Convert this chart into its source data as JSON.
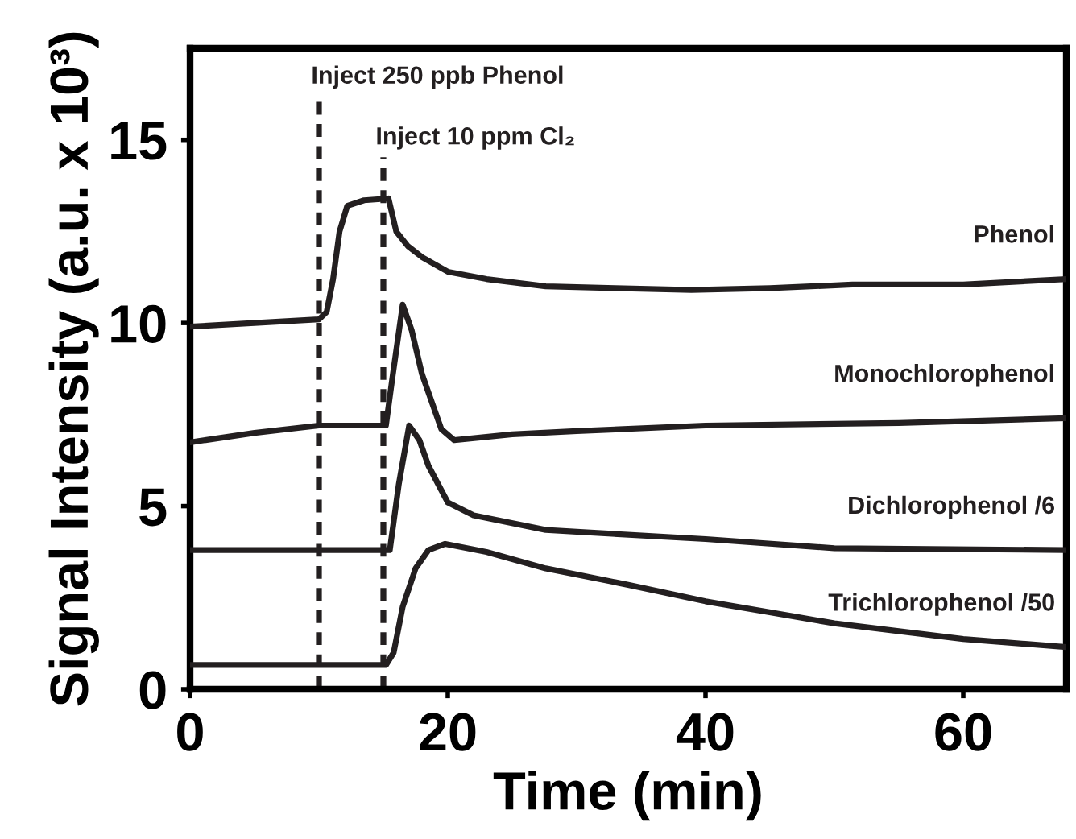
{
  "chart_data": {
    "type": "line",
    "xlabel": "Time (min)",
    "ylabel": "Signal Intensity (a.u. x 10³)",
    "xlim": [
      0,
      68
    ],
    "xticks": [
      0,
      20,
      40,
      60
    ],
    "ylim": [
      0,
      17.5
    ],
    "yticks": [
      0,
      5,
      10,
      15
    ],
    "grid": false,
    "legend": false,
    "marker": "none",
    "line_style": "solid",
    "series": [
      {
        "name": "Phenol",
        "color": "#231f20",
        "x": [
          0,
          5,
          10,
          10.6,
          11.1,
          11.6,
          12.2,
          13.5,
          15.4,
          16,
          16.9,
          18,
          20,
          23,
          27.6,
          33,
          38.9,
          45,
          51.4,
          60,
          68
        ],
        "values": [
          9.9,
          10.0,
          10.1,
          10.3,
          11.2,
          12.5,
          13.2,
          13.35,
          13.4,
          12.5,
          12.1,
          11.8,
          11.4,
          11.2,
          11.0,
          10.95,
          10.9,
          10.95,
          11.05,
          11.05,
          11.2
        ]
      },
      {
        "name": "Monochlorophenol",
        "color": "#231f20",
        "x": [
          0,
          5,
          10,
          15.2,
          15.7,
          16.5,
          17.2,
          18,
          19.5,
          20.5,
          25,
          30,
          40,
          55,
          68
        ],
        "values": [
          6.74,
          7.0,
          7.2,
          7.2,
          8.5,
          10.5,
          9.8,
          8.6,
          7.1,
          6.8,
          6.96,
          7.05,
          7.2,
          7.27,
          7.4
        ]
      },
      {
        "name": "Dichlorophenol /6",
        "color": "#231f20",
        "x": [
          0,
          10,
          15.5,
          16.2,
          17,
          17.8,
          18.5,
          20,
          22,
          27.6,
          30,
          40,
          50,
          68
        ],
        "values": [
          3.8,
          3.8,
          3.8,
          5.6,
          7.2,
          6.8,
          6.1,
          5.1,
          4.75,
          4.35,
          4.3,
          4.1,
          3.85,
          3.8
        ]
      },
      {
        "name": "Trichlorophenol /50",
        "color": "#231f20",
        "x": [
          0,
          10,
          15.2,
          15.8,
          16.5,
          17.5,
          18.5,
          19.8,
          23,
          27.6,
          34,
          40,
          50,
          60,
          68
        ],
        "values": [
          0.66,
          0.66,
          0.66,
          1.0,
          2.25,
          3.3,
          3.8,
          3.97,
          3.75,
          3.3,
          2.85,
          2.4,
          1.8,
          1.37,
          1.15
        ]
      }
    ],
    "ref_lines": [
      {
        "axis": "x",
        "value": 10,
        "label": "Inject 250 ppb Phenol",
        "color": "#231f20",
        "line_style": "dashed"
      },
      {
        "axis": "x",
        "value": 15,
        "label": "Inject 10 ppm Cl₂",
        "color": "#231f20",
        "line_style": "dashed"
      }
    ]
  }
}
